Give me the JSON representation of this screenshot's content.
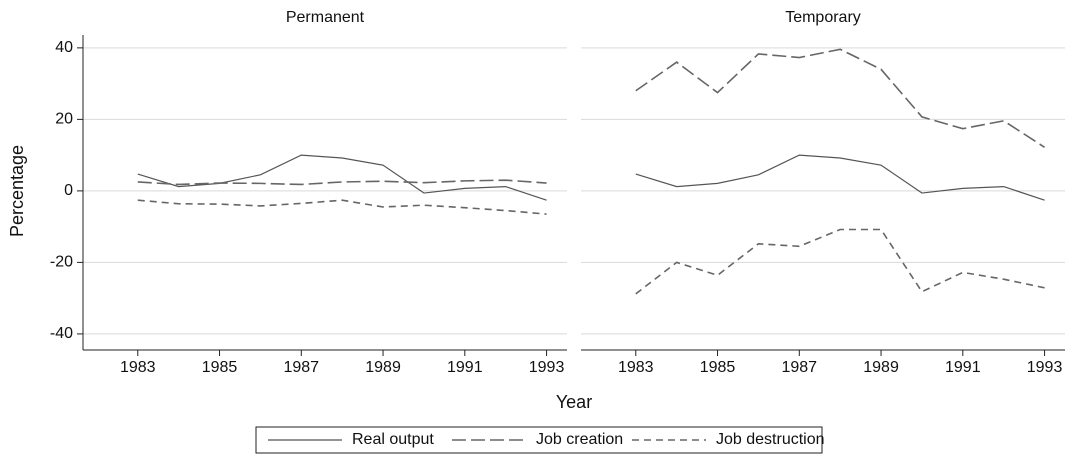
{
  "chart_data": [
    {
      "type": "line",
      "title": "Permanent",
      "ylabel": "Percentage",
      "xlabel": "Year",
      "x": [
        1983,
        1984,
        1985,
        1986,
        1987,
        1988,
        1989,
        1990,
        1991,
        1992,
        1993
      ],
      "xlim": [
        1981.66,
        1993.5
      ],
      "xticks": [
        1983,
        1985,
        1987,
        1989,
        1991,
        1993
      ],
      "ylim": [
        -44.5,
        43.6
      ],
      "yticks": [
        -40,
        -20,
        0,
        20,
        40
      ],
      "grid": true,
      "series": [
        {
          "name": "Real output",
          "color": "#555555",
          "dash": "solid",
          "values": [
            4.7,
            1.2,
            2.1,
            4.5,
            10,
            9.2,
            7.2,
            -0.6,
            0.7,
            1.2,
            -2.6
          ]
        },
        {
          "name": "Job creation",
          "color": "#666666",
          "dash": "long",
          "values": [
            2.5,
            1.8,
            2.2,
            2.1,
            1.8,
            2.5,
            2.7,
            2.3,
            2.8,
            3.0,
            2.2
          ]
        },
        {
          "name": "Job destruction",
          "color": "#666666",
          "dash": "short",
          "values": [
            -2.6,
            -3.6,
            -3.7,
            -4.2,
            -3.5,
            -2.6,
            -4.5,
            -4.0,
            -4.7,
            -5.5,
            -6.5
          ]
        }
      ]
    },
    {
      "type": "line",
      "title": "Temporary",
      "x": [
        1983,
        1984,
        1985,
        1986,
        1987,
        1988,
        1989,
        1990,
        1991,
        1992,
        1993
      ],
      "xlim": [
        1981.66,
        1993.5
      ],
      "xticks": [
        1983,
        1985,
        1987,
        1989,
        1991,
        1993
      ],
      "ylim": [
        -44.5,
        43.6
      ],
      "yticks": [
        -40,
        -20,
        0,
        20,
        40
      ],
      "grid": true,
      "series": [
        {
          "color": "#555555",
          "dash": "solid",
          "values": [
            4.7,
            1.2,
            2.1,
            4.5,
            10,
            9.2,
            7.2,
            -0.6,
            0.7,
            1.2,
            -2.6
          ]
        },
        {
          "color": "#666666",
          "dash": "long",
          "values": [
            28,
            36,
            27.5,
            38.3,
            37.3,
            39.6,
            34,
            20.7,
            17.4,
            19.6,
            12.2
          ]
        },
        {
          "color": "#666666",
          "dash": "short",
          "values": [
            -28.8,
            -20,
            -23.6,
            -14.8,
            -15.5,
            -10.8,
            -10.8,
            -28.2,
            -22.8,
            -24.7,
            -27.1
          ]
        }
      ]
    }
  ]
}
